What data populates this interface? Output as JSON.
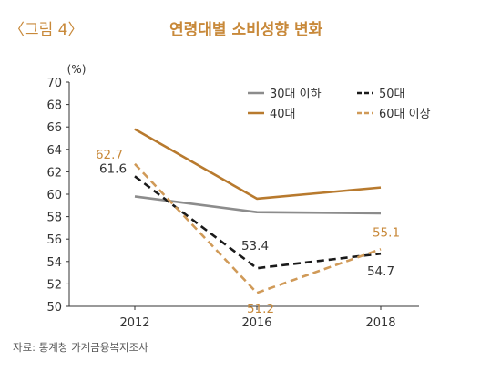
{
  "header": {
    "figure_label": "〈그림 4〉",
    "title": "연령대별 소비성향 변화"
  },
  "source": "자료: 통계청 가계금융복지조사",
  "chart_data": {
    "type": "line",
    "title": "연령대별 소비성향 변화",
    "ylabel": "(%)",
    "xlabel": "",
    "x": [
      "2012",
      "2016",
      "2018"
    ],
    "ylim": [
      50,
      70
    ],
    "yticks": [
      50,
      52,
      54,
      56,
      58,
      60,
      62,
      64,
      66,
      68,
      70
    ],
    "grid": false,
    "legend_position": "top-right",
    "series": [
      {
        "name": "30대 이하",
        "values": [
          59.8,
          58.4,
          58.3
        ],
        "color": "#8c8c8c",
        "dash": "solid"
      },
      {
        "name": "50대",
        "values": [
          61.6,
          53.4,
          54.7
        ],
        "color": "#1a1a1a",
        "dash": "dashed"
      },
      {
        "name": "40대",
        "values": [
          65.8,
          59.6,
          60.6
        ],
        "color": "#b87a2e",
        "dash": "solid"
      },
      {
        "name": "60대 이상",
        "values": [
          62.7,
          51.2,
          55.1
        ],
        "color": "#d09a58",
        "dash": "dashed"
      }
    ],
    "data_labels": [
      {
        "series": "60대 이상",
        "x": "2012",
        "text": "62.7",
        "color": "#c8893a"
      },
      {
        "series": "50대",
        "x": "2012",
        "text": "61.6",
        "color": "#333333"
      },
      {
        "series": "50대",
        "x": "2016",
        "text": "53.4",
        "color": "#333333"
      },
      {
        "series": "60대 이상",
        "x": "2016",
        "text": "51.2",
        "color": "#c8893a"
      },
      {
        "series": "60대 이상",
        "x": "2018",
        "text": "55.1",
        "color": "#c8893a"
      },
      {
        "series": "50대",
        "x": "2018",
        "text": "54.7",
        "color": "#333333"
      }
    ]
  }
}
